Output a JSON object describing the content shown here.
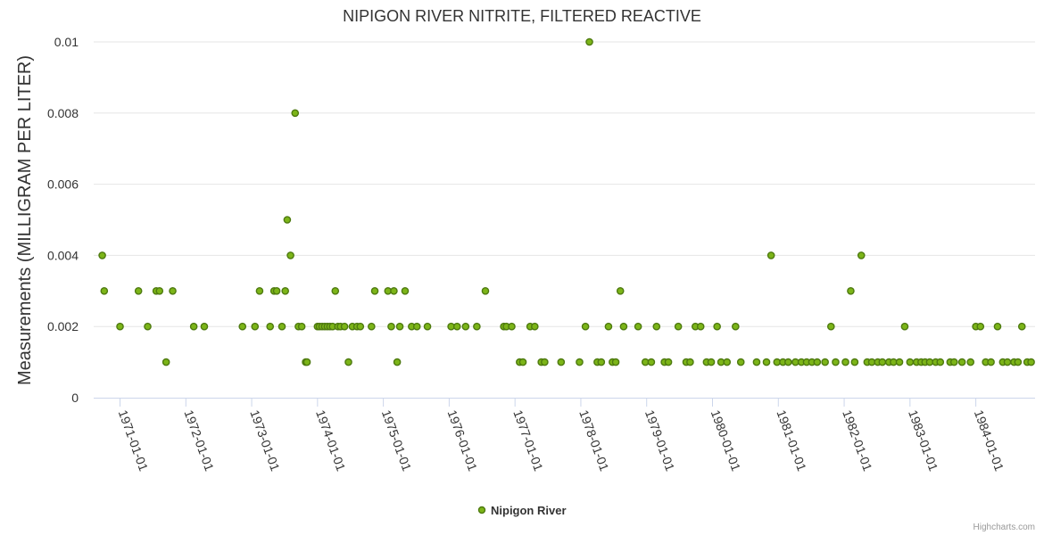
{
  "chart_data": {
    "type": "scatter",
    "title": "NIPIGON RIVER NITRITE, FILTERED REACTIVE",
    "ylabel": "Measurements (MILLIGRAM PER LITER)",
    "xlabel": "",
    "ylim": [
      0,
      0.01
    ],
    "yticks": [
      {
        "value": 0,
        "label": "0"
      },
      {
        "value": 0.002,
        "label": "0.002"
      },
      {
        "value": 0.004,
        "label": "0.004"
      },
      {
        "value": 0.006,
        "label": "0.006"
      },
      {
        "value": 0.008,
        "label": "0.008"
      },
      {
        "value": 0.01,
        "label": "0.01"
      }
    ],
    "xlim": [
      1970.6,
      1984.9
    ],
    "xticks": [
      {
        "value": 1971.0,
        "label": "1971-01-01"
      },
      {
        "value": 1972.0,
        "label": "1972-01-01"
      },
      {
        "value": 1973.0,
        "label": "1973-01-01"
      },
      {
        "value": 1974.0,
        "label": "1974-01-01"
      },
      {
        "value": 1975.0,
        "label": "1975-01-01"
      },
      {
        "value": 1976.0,
        "label": "1976-01-01"
      },
      {
        "value": 1977.0,
        "label": "1977-01-01"
      },
      {
        "value": 1978.0,
        "label": "1978-01-01"
      },
      {
        "value": 1979.0,
        "label": "1979-01-01"
      },
      {
        "value": 1980.0,
        "label": "1980-01-01"
      },
      {
        "value": 1981.0,
        "label": "1981-01-01"
      },
      {
        "value": 1982.0,
        "label": "1982-01-01"
      },
      {
        "value": 1983.0,
        "label": "1983-01-01"
      },
      {
        "value": 1984.0,
        "label": "1984-01-01"
      }
    ],
    "grid": true,
    "legend_position": "bottom-center",
    "series": [
      {
        "name": "Nipigon River",
        "color": "#7cb518",
        "border": "#4e7a10",
        "x": [
          1970.73,
          1970.76,
          1971.0,
          1971.28,
          1971.42,
          1971.55,
          1971.6,
          1971.7,
          1971.8,
          1972.12,
          1972.28,
          1972.86,
          1973.05,
          1973.12,
          1973.28,
          1973.34,
          1973.38,
          1973.46,
          1973.51,
          1973.54,
          1973.59,
          1973.66,
          1973.71,
          1973.76,
          1973.82,
          1973.84,
          1974.0,
          1974.03,
          1974.07,
          1974.11,
          1974.15,
          1974.19,
          1974.23,
          1974.27,
          1974.31,
          1974.35,
          1974.41,
          1974.47,
          1974.53,
          1974.6,
          1974.65,
          1974.82,
          1974.87,
          1975.07,
          1975.12,
          1975.16,
          1975.21,
          1975.25,
          1975.33,
          1975.43,
          1975.51,
          1975.67,
          1976.03,
          1976.12,
          1976.25,
          1976.42,
          1976.55,
          1976.83,
          1976.87,
          1976.95,
          1977.07,
          1977.12,
          1977.23,
          1977.3,
          1977.4,
          1977.45,
          1977.7,
          1977.98,
          1978.07,
          1978.13,
          1978.25,
          1978.31,
          1978.42,
          1978.48,
          1978.53,
          1978.6,
          1978.65,
          1978.87,
          1978.98,
          1979.07,
          1979.15,
          1979.27,
          1979.33,
          1979.48,
          1979.6,
          1979.66,
          1979.74,
          1979.82,
          1979.91,
          1979.98,
          1980.07,
          1980.13,
          1980.22,
          1980.35,
          1980.43,
          1980.67,
          1980.82,
          1980.89,
          1980.98,
          1981.07,
          1981.15,
          1981.26,
          1981.35,
          1981.43,
          1981.51,
          1981.59,
          1981.71,
          1981.8,
          1981.87,
          1982.02,
          1982.1,
          1982.16,
          1982.26,
          1982.35,
          1982.42,
          1982.51,
          1982.58,
          1982.68,
          1982.75,
          1982.84,
          1982.92,
          1983.0,
          1983.1,
          1983.17,
          1983.23,
          1983.3,
          1983.39,
          1983.46,
          1983.61,
          1983.67,
          1983.79,
          1983.92,
          1984.0,
          1984.07,
          1984.15,
          1984.23,
          1984.33,
          1984.41,
          1984.48,
          1984.58,
          1984.64,
          1984.7,
          1984.78,
          1984.84
        ],
        "y": [
          0.004,
          0.003,
          0.002,
          0.003,
          0.002,
          0.003,
          0.003,
          0.001,
          0.003,
          0.002,
          0.002,
          0.002,
          0.002,
          0.003,
          0.002,
          0.003,
          0.003,
          0.002,
          0.003,
          0.005,
          0.004,
          0.008,
          0.002,
          0.002,
          0.001,
          0.001,
          0.002,
          0.002,
          0.002,
          0.002,
          0.002,
          0.002,
          0.002,
          0.003,
          0.002,
          0.002,
          0.002,
          0.001,
          0.002,
          0.002,
          0.002,
          0.002,
          0.003,
          0.003,
          0.002,
          0.003,
          0.001,
          0.002,
          0.003,
          0.002,
          0.002,
          0.002,
          0.002,
          0.002,
          0.002,
          0.002,
          0.003,
          0.002,
          0.002,
          0.002,
          0.001,
          0.001,
          0.002,
          0.002,
          0.001,
          0.001,
          0.001,
          0.001,
          0.002,
          0.01,
          0.001,
          0.001,
          0.002,
          0.001,
          0.001,
          0.003,
          0.002,
          0.002,
          0.001,
          0.001,
          0.002,
          0.001,
          0.001,
          0.002,
          0.001,
          0.001,
          0.002,
          0.002,
          0.001,
          0.001,
          0.002,
          0.001,
          0.001,
          0.002,
          0.001,
          0.001,
          0.001,
          0.004,
          0.001,
          0.001,
          0.001,
          0.001,
          0.001,
          0.001,
          0.001,
          0.001,
          0.001,
          0.002,
          0.001,
          0.001,
          0.003,
          0.001,
          0.004,
          0.001,
          0.001,
          0.001,
          0.001,
          0.001,
          0.001,
          0.001,
          0.002,
          0.001,
          0.001,
          0.001,
          0.001,
          0.001,
          0.001,
          0.001,
          0.001,
          0.001,
          0.001,
          0.001,
          0.002,
          0.002,
          0.001,
          0.001,
          0.002,
          0.001,
          0.001,
          0.001,
          0.001,
          0.002,
          0.001,
          0.001
        ]
      }
    ]
  },
  "credits": "Highcharts.com"
}
